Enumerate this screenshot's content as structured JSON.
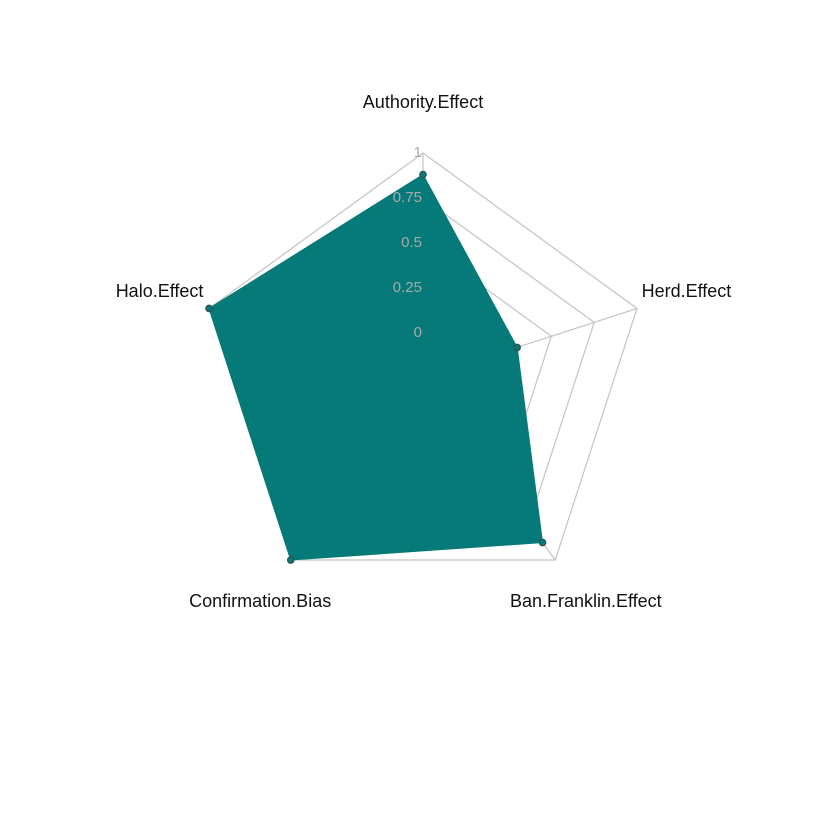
{
  "chart_data": {
    "type": "radar",
    "axes": [
      "Authority.Effect",
      "Herd.Effect",
      "Ban.Franklin.Effect",
      "Confirmation.Bias",
      "Halo.Effect"
    ],
    "series": [
      {
        "values": [
          0.88,
          0.3,
          0.88,
          1.0,
          1.0
        ],
        "color": "#057a78"
      }
    ],
    "rlim": [
      0,
      1
    ],
    "ticks": [
      0,
      0.25,
      0.5,
      0.75,
      1
    ],
    "tick_labels": [
      "0",
      "0.25",
      "0.5",
      "0.75",
      "1"
    ],
    "grid": true,
    "legend": "none",
    "colors": {
      "fill": "#057a78",
      "grid": "#c4c4c4",
      "tick_label": "#a9a9a9",
      "point_outline": "#2f4f4f"
    }
  }
}
